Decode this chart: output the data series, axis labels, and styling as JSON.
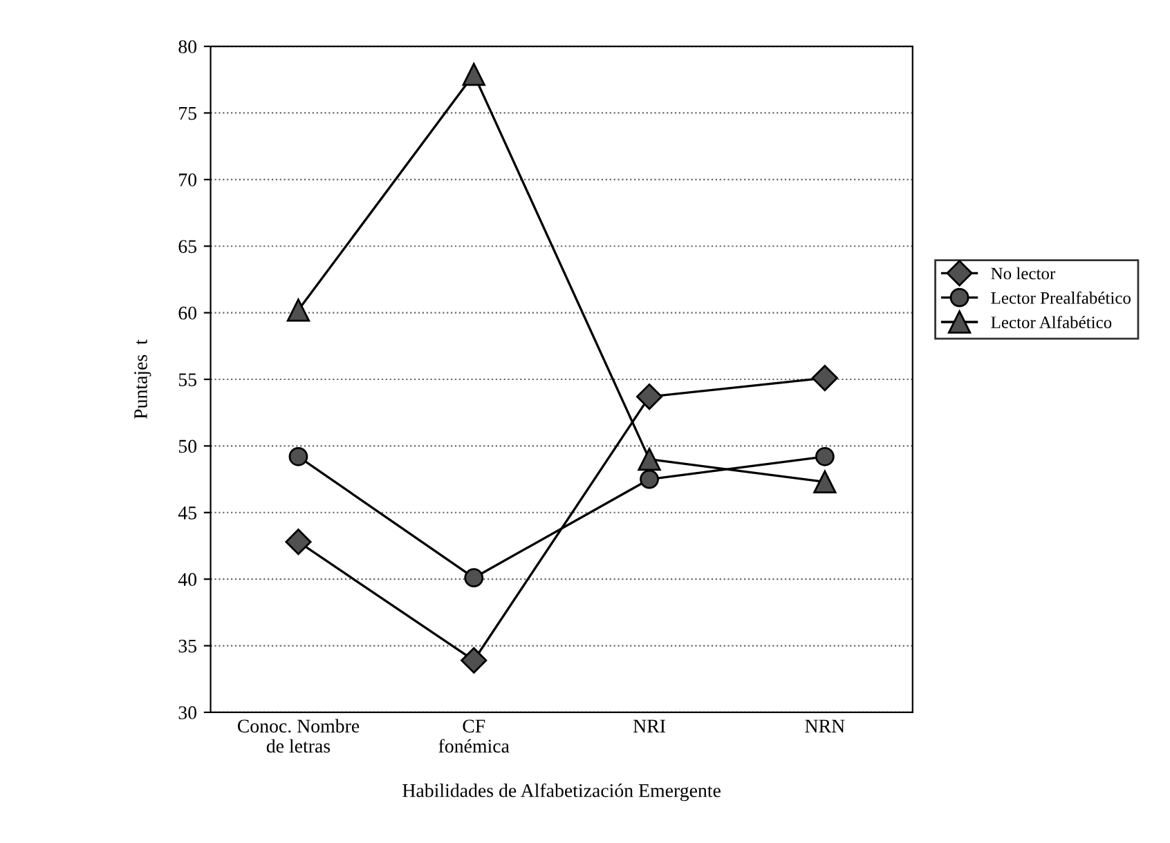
{
  "chart_data": {
    "type": "line",
    "xlabel": "Habilidades de Alfabetización Emergente",
    "ylabel": "Puntajes  t",
    "categories": [
      "Conoc. Nombre\nde letras",
      "CF\nfonémica",
      "NRI",
      "NRN"
    ],
    "series": [
      {
        "name": "No lector",
        "color": "#505050",
        "marker": "diamond",
        "values": [
          42.8,
          33.9,
          53.7,
          55.1
        ]
      },
      {
        "name": "Lector Prealfabético",
        "color": "#505050",
        "marker": "circle",
        "values": [
          49.2,
          40.1,
          47.5,
          49.2
        ]
      },
      {
        "name": "Lector Alfabético",
        "color": "#505050",
        "marker": "triangle",
        "values": [
          60.2,
          77.9,
          49.0,
          47.3
        ]
      }
    ],
    "ylim": [
      30,
      80
    ],
    "yticks": [
      30,
      35,
      40,
      45,
      50,
      55,
      60,
      65,
      70,
      75,
      80
    ],
    "grid": "y",
    "legend": "right",
    "line_style": "solid"
  }
}
